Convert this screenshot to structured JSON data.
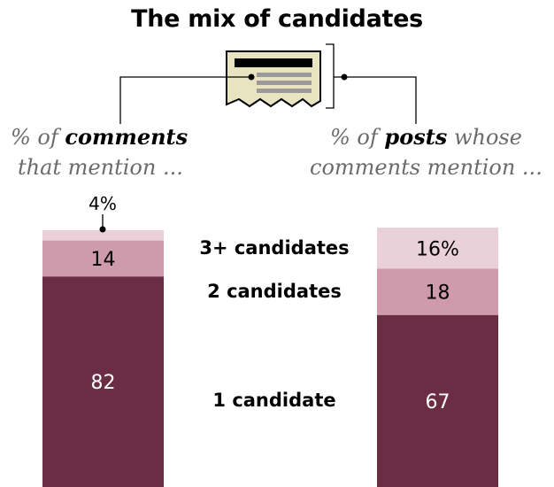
{
  "title": "The mix of candidates",
  "left_heading": {
    "prefix": "% of ",
    "emph": "comments",
    "line2": "that mention ..."
  },
  "right_heading": {
    "prefix": "% of ",
    "emph": "posts",
    "suffix": " whose",
    "line2": "comments mention ..."
  },
  "icon": "document-icon",
  "colors": {
    "one": "#6b2d43",
    "two": "#cf9aab",
    "three": "#ead0d8"
  },
  "chart_data": {
    "type": "bar",
    "stacked": true,
    "categories": [
      "% of comments that mention ...",
      "% of posts whose comments mention ..."
    ],
    "series": [
      {
        "name": "1 candidate",
        "values": [
          82,
          67
        ],
        "labels": [
          "82",
          "67"
        ]
      },
      {
        "name": "2 candidates",
        "values": [
          14,
          18
        ],
        "labels": [
          "14",
          "18"
        ]
      },
      {
        "name": "3+ candidates",
        "values": [
          4,
          16
        ],
        "labels": [
          "4%",
          "16%"
        ]
      }
    ],
    "ylim": [
      0,
      100
    ]
  }
}
